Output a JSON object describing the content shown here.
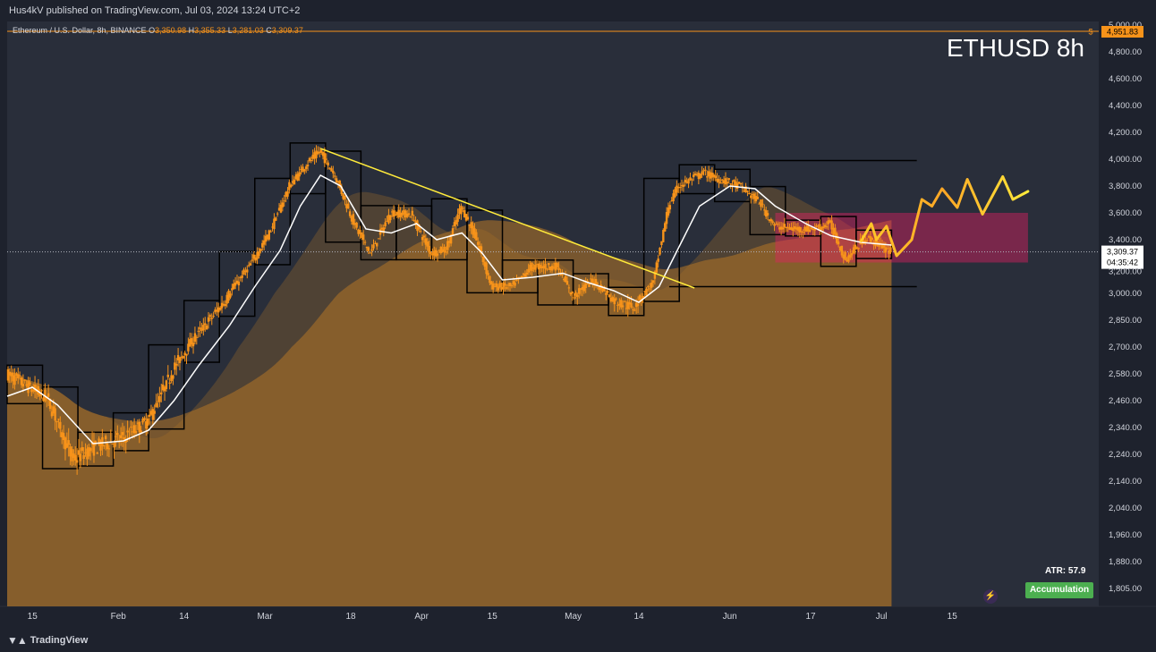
{
  "header": {
    "published": "Hus4kV published on TradingView.com, Jul 03, 2024 13:24 UTC+2"
  },
  "legend": {
    "symbol": "Ethereum / U.S. Dollar, 8h, BINANCE",
    "o_label": "O",
    "o": "3,350.98",
    "h_label": "H",
    "h": "3,355.33",
    "l_label": "L",
    "l": "3,281.03",
    "c_label": "C",
    "c": "3,309.37"
  },
  "overlay_title": "ETHUSD 8h",
  "atr_label": "ATR: 57.9",
  "accumulation_label": "Accumulation",
  "footer_brand": "TradingView",
  "colors": {
    "background": "#1e222d",
    "candle": "#f7931a",
    "ema_fast": "#ffffff",
    "cloud": "#a86f28",
    "trendline": "#ffeb3b",
    "zone": "#e91e63",
    "accumulation": "#4caf50"
  },
  "chart_data": {
    "type": "line",
    "title": "ETHUSD 8h",
    "y_ticks": [
      "5,000.00",
      "4,800.00",
      "4,600.00",
      "4,400.00",
      "4,200.00",
      "4,000.00",
      "3,800.00",
      "3,600.00",
      "3,400.00",
      "3,200.00",
      "3,000.00",
      "2,850.00",
      "2,700.00",
      "2,580.00",
      "2,460.00",
      "2,340.00",
      "2,240.00",
      "2,140.00",
      "2,040.00",
      "1,960.00",
      "1,880.00",
      "1,805.00"
    ],
    "x_ticks": [
      "15",
      "Feb",
      "14",
      "Mar",
      "18",
      "Apr",
      "15",
      "May",
      "14",
      "Jun",
      "17",
      "Jul",
      "15"
    ],
    "price_labels": {
      "top": "4,951.83",
      "current": "3,309.37",
      "countdown": "04:35:42",
      "hidden": "3,200.00"
    },
    "series": [
      {
        "name": "Price",
        "points": [
          [
            "2024-01-10",
            2580
          ],
          [
            "2024-01-13",
            2540
          ],
          [
            "2024-01-18",
            2470
          ],
          [
            "2024-01-23",
            2220
          ],
          [
            "2024-01-28",
            2270
          ],
          [
            "2024-02-02",
            2300
          ],
          [
            "2024-02-07",
            2370
          ],
          [
            "2024-02-12",
            2600
          ],
          [
            "2024-02-17",
            2780
          ],
          [
            "2024-02-22",
            2950
          ],
          [
            "2024-02-27",
            3200
          ],
          [
            "2024-03-02",
            3450
          ],
          [
            "2024-03-06",
            3800
          ],
          [
            "2024-03-09",
            3950
          ],
          [
            "2024-03-12",
            4060
          ],
          [
            "2024-03-15",
            3880
          ],
          [
            "2024-03-19",
            3500
          ],
          [
            "2024-03-22",
            3300
          ],
          [
            "2024-03-26",
            3600
          ],
          [
            "2024-03-30",
            3590
          ],
          [
            "2024-04-03",
            3300
          ],
          [
            "2024-04-06",
            3330
          ],
          [
            "2024-04-09",
            3650
          ],
          [
            "2024-04-12",
            3400
          ],
          [
            "2024-04-15",
            3050
          ],
          [
            "2024-04-19",
            3050
          ],
          [
            "2024-04-23",
            3200
          ],
          [
            "2024-04-28",
            3200
          ],
          [
            "2024-05-01",
            2980
          ],
          [
            "2024-05-05",
            3100
          ],
          [
            "2024-05-09",
            2960
          ],
          [
            "2024-05-13",
            2920
          ],
          [
            "2024-05-17",
            3080
          ],
          [
            "2024-05-20",
            3650
          ],
          [
            "2024-05-22",
            3800
          ],
          [
            "2024-05-27",
            3900
          ],
          [
            "2024-05-30",
            3850
          ],
          [
            "2024-06-03",
            3800
          ],
          [
            "2024-06-07",
            3680
          ],
          [
            "2024-06-10",
            3500
          ],
          [
            "2024-06-14",
            3480
          ],
          [
            "2024-06-18",
            3480
          ],
          [
            "2024-06-21",
            3520
          ],
          [
            "2024-06-24",
            3250
          ],
          [
            "2024-06-28",
            3420
          ],
          [
            "2024-07-03",
            3309.37
          ]
        ]
      },
      {
        "name": "EMA",
        "points": [
          [
            "2024-01-10",
            2480
          ],
          [
            "2024-01-15",
            2520
          ],
          [
            "2024-01-20",
            2440
          ],
          [
            "2024-01-27",
            2280
          ],
          [
            "2024-02-02",
            2290
          ],
          [
            "2024-02-07",
            2330
          ],
          [
            "2024-02-12",
            2460
          ],
          [
            "2024-02-17",
            2620
          ],
          [
            "2024-02-23",
            2820
          ],
          [
            "2024-02-28",
            3050
          ],
          [
            "2024-03-04",
            3320
          ],
          [
            "2024-03-08",
            3650
          ],
          [
            "2024-03-12",
            3880
          ],
          [
            "2024-03-16",
            3800
          ],
          [
            "2024-03-21",
            3480
          ],
          [
            "2024-03-26",
            3450
          ],
          [
            "2024-03-31",
            3520
          ],
          [
            "2024-04-04",
            3400
          ],
          [
            "2024-04-09",
            3450
          ],
          [
            "2024-04-13",
            3300
          ],
          [
            "2024-04-17",
            3100
          ],
          [
            "2024-04-23",
            3120
          ],
          [
            "2024-04-29",
            3150
          ],
          [
            "2024-05-04",
            3080
          ],
          [
            "2024-05-09",
            3020
          ],
          [
            "2024-05-14",
            2950
          ],
          [
            "2024-05-18",
            3050
          ],
          [
            "2024-05-22",
            3350
          ],
          [
            "2024-05-26",
            3650
          ],
          [
            "2024-06-01",
            3800
          ],
          [
            "2024-06-06",
            3780
          ],
          [
            "2024-06-10",
            3650
          ],
          [
            "2024-06-16",
            3520
          ],
          [
            "2024-06-21",
            3430
          ],
          [
            "2024-06-27",
            3380
          ],
          [
            "2024-07-03",
            3360
          ]
        ]
      },
      {
        "name": "Projection",
        "points": [
          [
            "2024-06-27",
            3390
          ],
          [
            "2024-06-29",
            3520
          ],
          [
            "2024-06-30",
            3400
          ],
          [
            "2024-07-02",
            3500
          ],
          [
            "2024-07-04",
            3280
          ],
          [
            "2024-07-07",
            3400
          ],
          [
            "2024-07-09",
            3700
          ],
          [
            "2024-07-11",
            3650
          ],
          [
            "2024-07-13",
            3780
          ],
          [
            "2024-07-16",
            3640
          ],
          [
            "2024-07-18",
            3850
          ],
          [
            "2024-07-21",
            3590
          ],
          [
            "2024-07-23",
            3730
          ],
          [
            "2024-07-25",
            3870
          ],
          [
            "2024-07-27",
            3700
          ],
          [
            "2024-07-30",
            3760
          ]
        ]
      }
    ],
    "trendline": {
      "from": [
        "2024-03-12",
        4080
      ],
      "to": [
        "2024-05-25",
        3040
      ]
    },
    "resistance_zone": {
      "x": [
        "2024-06-10",
        "2024-07-30"
      ],
      "y": [
        3230,
        3600
      ]
    },
    "levels": [
      {
        "x": [
          "2024-05-28",
          "2024-07-08"
        ],
        "y": 3990
      },
      {
        "x": [
          "2024-05-20",
          "2024-07-08"
        ],
        "y": 3050
      }
    ],
    "ylim": [
      1805,
      5000
    ],
    "xlim": [
      "2024-01-10",
      "2024-08-13"
    ],
    "grid": false
  }
}
